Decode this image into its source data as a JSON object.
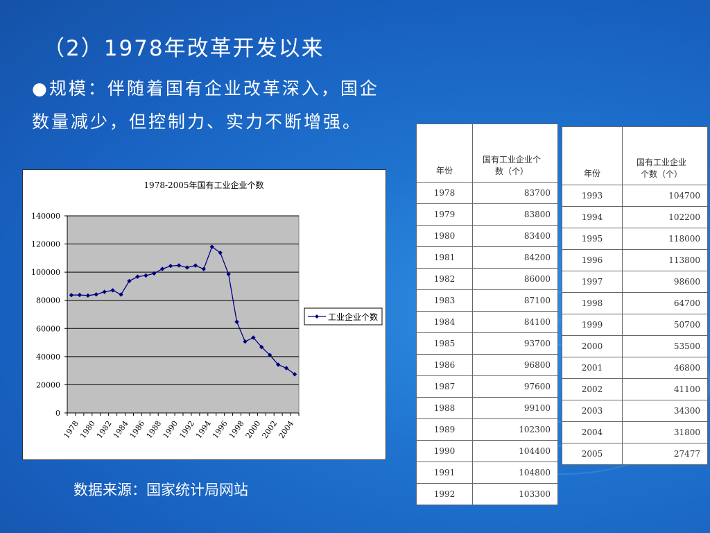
{
  "slide": {
    "title": "（2）1978年改革开发以来",
    "bullet_line1": "●规模：伴随着国有企业改革深入，国企",
    "bullet_line2": "数量减少，但控制力、实力不断增强。",
    "source": "数据来源：国家统计局网站"
  },
  "table_left": {
    "header_year": "年份",
    "header_value": "国有工业企业个数（个）",
    "rows": [
      {
        "year": "1978",
        "value": "83700"
      },
      {
        "year": "1979",
        "value": "83800"
      },
      {
        "year": "1980",
        "value": "83400"
      },
      {
        "year": "1981",
        "value": "84200"
      },
      {
        "year": "1982",
        "value": "86000"
      },
      {
        "year": "1983",
        "value": "87100"
      },
      {
        "year": "1984",
        "value": "84100"
      },
      {
        "year": "1985",
        "value": "93700"
      },
      {
        "year": "1986",
        "value": "96800"
      },
      {
        "year": "1987",
        "value": "97600"
      },
      {
        "year": "1988",
        "value": "99100"
      },
      {
        "year": "1989",
        "value": "102300"
      },
      {
        "year": "1990",
        "value": "104400"
      },
      {
        "year": "1991",
        "value": "104800"
      },
      {
        "year": "1992",
        "value": "103300"
      }
    ]
  },
  "table_right": {
    "header_year": "年份",
    "header_value": "国有工业企业个数（个）",
    "rows": [
      {
        "year": "1993",
        "value": "104700"
      },
      {
        "year": "1994",
        "value": "102200"
      },
      {
        "year": "1995",
        "value": "118000"
      },
      {
        "year": "1996",
        "value": "113800"
      },
      {
        "year": "1997",
        "value": "98600"
      },
      {
        "year": "1998",
        "value": "64700"
      },
      {
        "year": "1999",
        "value": "50700"
      },
      {
        "year": "2000",
        "value": "53500"
      },
      {
        "year": "2001",
        "value": "46800"
      },
      {
        "year": "2002",
        "value": "41100"
      },
      {
        "year": "2003",
        "value": "34300"
      },
      {
        "year": "2004",
        "value": "31800"
      },
      {
        "year": "2005",
        "value": "27477"
      }
    ]
  },
  "chart_data": {
    "type": "line",
    "title": "1978-2005年国有工业企业个数",
    "x": [
      1978,
      1979,
      1980,
      1981,
      1982,
      1983,
      1984,
      1985,
      1986,
      1987,
      1988,
      1989,
      1990,
      1991,
      1992,
      1993,
      1994,
      1995,
      1996,
      1997,
      1998,
      1999,
      2000,
      2001,
      2002,
      2003,
      2004,
      2005
    ],
    "x_tick_labels": [
      "1978",
      "1980",
      "1982",
      "1984",
      "1986",
      "1988",
      "1990",
      "1992",
      "1994",
      "1996",
      "1998",
      "2000",
      "2002",
      "2004"
    ],
    "series": [
      {
        "name": "工业企业个数",
        "color": "#000080",
        "values": [
          83700,
          83800,
          83400,
          84200,
          86000,
          87100,
          84100,
          93700,
          96800,
          97600,
          99100,
          102300,
          104400,
          104800,
          103300,
          104700,
          102200,
          118000,
          113800,
          98600,
          64700,
          50700,
          53500,
          46800,
          41100,
          34300,
          31800,
          27477
        ]
      }
    ],
    "ylim": [
      0,
      140000
    ],
    "y_ticks": [
      0,
      20000,
      40000,
      60000,
      80000,
      100000,
      120000,
      140000
    ],
    "xlabel": "",
    "ylabel": "",
    "grid": true,
    "plot_background": "#c0c0c0",
    "legend_position": "right"
  }
}
